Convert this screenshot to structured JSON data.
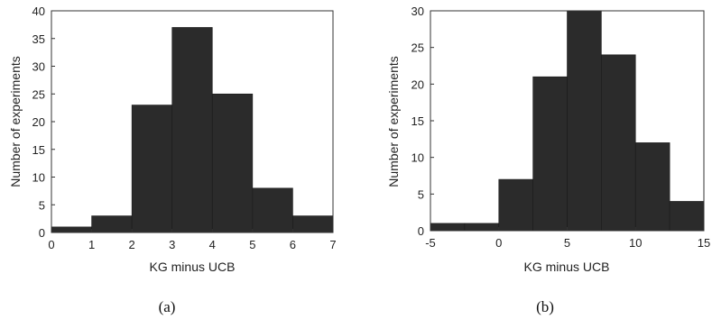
{
  "chart_data": [
    {
      "type": "bar",
      "panel_caption": "(a)",
      "xlabel": "KG minus UCB",
      "ylabel": "Number of experiments",
      "xlim": [
        0,
        7
      ],
      "ylim": [
        0,
        40
      ],
      "xticks": [
        0,
        1,
        2,
        3,
        4,
        5,
        6,
        7
      ],
      "yticks": [
        0,
        5,
        10,
        15,
        20,
        25,
        30,
        35,
        40
      ],
      "bin_edges": [
        0,
        1,
        2,
        3,
        4,
        5,
        6,
        7
      ],
      "values": [
        1,
        3,
        23,
        37,
        25,
        8,
        3
      ],
      "bar_color": "#2b2b2b"
    },
    {
      "type": "bar",
      "panel_caption": "(b)",
      "xlabel": "KG minus UCB",
      "ylabel": "Number of experiments",
      "xlim": [
        -5,
        15
      ],
      "ylim": [
        0,
        30
      ],
      "xticks": [
        -5,
        0,
        5,
        10,
        15
      ],
      "yticks": [
        0,
        5,
        10,
        15,
        20,
        25,
        30
      ],
      "bin_edges": [
        -5,
        -2.5,
        0,
        2.5,
        5,
        7.5,
        10,
        12.5,
        15
      ],
      "values": [
        1,
        1,
        7,
        21,
        30,
        24,
        12,
        4
      ],
      "bar_color": "#2b2b2b"
    }
  ]
}
